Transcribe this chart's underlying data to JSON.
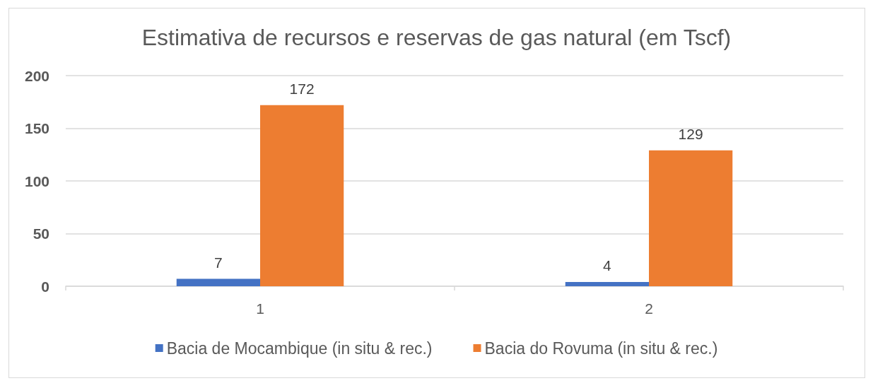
{
  "chart_data": {
    "type": "bar",
    "title": "Estimativa de recursos e reservas de gas natural (em Tscf)",
    "categories": [
      "1",
      "2"
    ],
    "series": [
      {
        "name": "Bacia de Mocambique (in situ & rec.)",
        "color": "#4472c4",
        "values": [
          7,
          4
        ]
      },
      {
        "name": "Bacia do Rovuma (in situ & rec.)",
        "color": "#ed7d31",
        "values": [
          172,
          129
        ]
      }
    ],
    "ylim": [
      0,
      200
    ],
    "yticks": [
      0,
      50,
      100,
      150,
      200
    ],
    "grid": "y",
    "legend": "bottom",
    "data_labels": true
  }
}
